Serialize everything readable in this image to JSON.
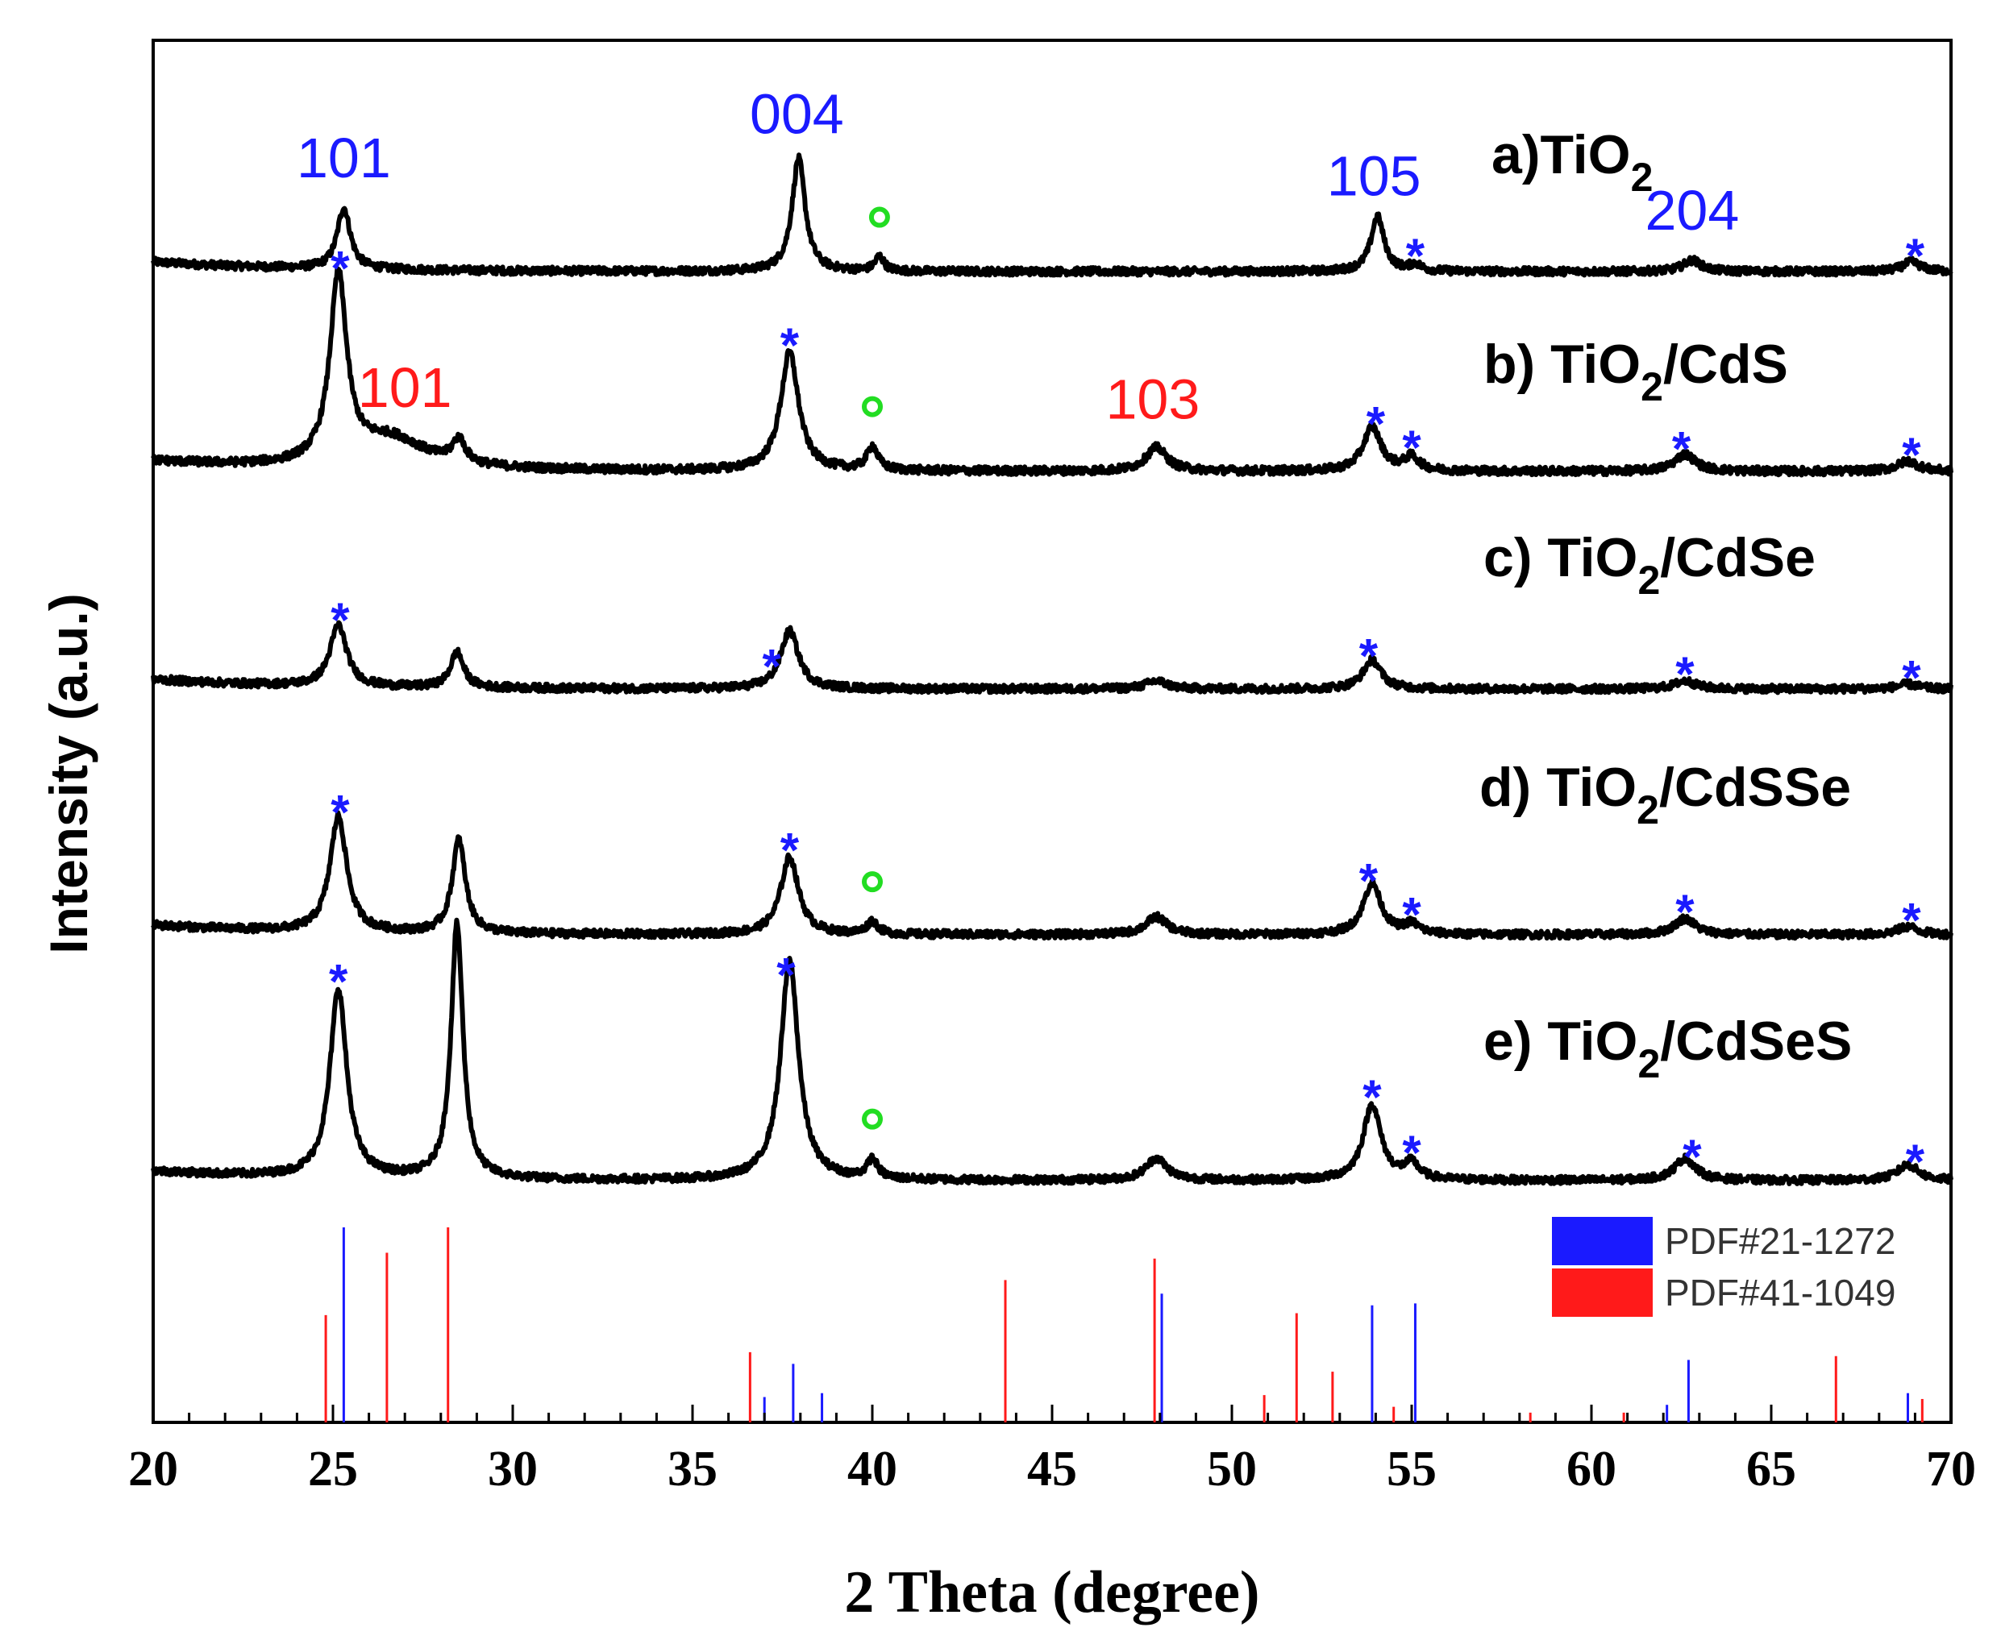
{
  "chart_data": {
    "type": "line",
    "title": "",
    "xlabel": "2 Theta (degree)",
    "ylabel": "Intensity (a.u.)",
    "xlim": [
      20,
      70
    ],
    "xticks": [
      "20",
      "25",
      "30",
      "35",
      "40",
      "45",
      "50",
      "55",
      "60",
      "65",
      "70"
    ],
    "series": [
      {
        "name": "TiO2",
        "label_prefix": "a)TiO",
        "label_sub": "2",
        "label_suffix": "",
        "baseline": 0,
        "noise": 3,
        "peaks": [
          [
            25.3,
            38,
            0.22
          ],
          [
            37.95,
            70,
            0.22
          ],
          [
            40.2,
            9,
            0.15
          ],
          [
            54.05,
            34,
            0.22
          ],
          [
            55.1,
            4,
            0.2
          ],
          [
            62.8,
            7,
            0.3
          ],
          [
            68.9,
            6,
            0.3
          ]
        ],
        "markers": [
          {
            "type": "miller",
            "text": "101",
            "x": 25.3,
            "color": "#1a1aff"
          },
          {
            "type": "miller",
            "text": "004",
            "x": 37.9,
            "color": "#1a1aff"
          },
          {
            "type": "circle",
            "x": 40.2
          },
          {
            "type": "miller",
            "text": "105",
            "x": 53.95,
            "color": "#1a1aff"
          },
          {
            "type": "star",
            "x": 55.1
          },
          {
            "type": "miller",
            "text": "204",
            "x": 62.8,
            "color": "#1a1aff"
          },
          {
            "type": "star",
            "x": 69.0
          }
        ]
      },
      {
        "name": "TiO2/CdS",
        "label_prefix": "b) TiO",
        "label_sub": "2",
        "label_suffix": "/CdS",
        "baseline": 0,
        "noise": 3,
        "peaks": [
          [
            25.15,
            110,
            0.28
          ],
          [
            26.6,
            18,
            1.2
          ],
          [
            28.5,
            14,
            0.22
          ],
          [
            37.7,
            70,
            0.3
          ],
          [
            40.0,
            14,
            0.18
          ],
          [
            47.9,
            14,
            0.35
          ],
          [
            53.9,
            26,
            0.3
          ],
          [
            55.0,
            8,
            0.25
          ],
          [
            62.6,
            10,
            0.35
          ],
          [
            68.8,
            6,
            0.35
          ]
        ],
        "markers": [
          {
            "type": "star",
            "x": 25.2
          },
          {
            "type": "miller",
            "text": "101",
            "x": 27.0,
            "color": "#ff1a1a"
          },
          {
            "type": "star",
            "x": 37.7
          },
          {
            "type": "circle",
            "x": 40.0
          },
          {
            "type": "miller",
            "text": "103",
            "x": 47.8,
            "color": "#ff1a1a"
          },
          {
            "type": "star",
            "x": 54.0
          },
          {
            "type": "star",
            "x": 55.0
          },
          {
            "type": "star",
            "x": 62.5
          },
          {
            "type": "star",
            "x": 68.9
          }
        ]
      },
      {
        "name": "TiO2/CdSe",
        "label_prefix": "c) TiO",
        "label_sub": "2",
        "label_suffix": "/CdSe",
        "baseline": 0,
        "noise": 3,
        "peaks": [
          [
            25.15,
            38,
            0.28
          ],
          [
            28.45,
            22,
            0.22
          ],
          [
            37.7,
            36,
            0.3
          ],
          [
            47.9,
            5,
            0.35
          ],
          [
            53.9,
            18,
            0.3
          ],
          [
            62.6,
            5,
            0.35
          ],
          [
            68.8,
            3,
            0.35
          ]
        ],
        "markers": [
          {
            "type": "star",
            "x": 25.2
          },
          {
            "type": "star",
            "x": 37.2
          },
          {
            "type": "star",
            "x": 53.8
          },
          {
            "type": "star",
            "x": 62.6
          },
          {
            "type": "star",
            "x": 68.9
          }
        ]
      },
      {
        "name": "TiO2/CdSSe",
        "label_prefix": "d) TiO",
        "label_sub": "2",
        "label_suffix": "/CdSSe",
        "baseline": 0,
        "noise": 3,
        "peaks": [
          [
            25.15,
            72,
            0.28
          ],
          [
            28.5,
            58,
            0.22
          ],
          [
            37.7,
            48,
            0.3
          ],
          [
            40.0,
            8,
            0.18
          ],
          [
            47.9,
            11,
            0.35
          ],
          [
            53.9,
            32,
            0.3
          ],
          [
            55.0,
            6,
            0.25
          ],
          [
            62.6,
            10,
            0.35
          ],
          [
            68.8,
            5,
            0.35
          ]
        ],
        "markers": [
          {
            "type": "star",
            "x": 25.2
          },
          {
            "type": "star",
            "x": 37.7
          },
          {
            "type": "circle",
            "x": 40.0
          },
          {
            "type": "star",
            "x": 53.8
          },
          {
            "type": "star",
            "x": 55.0
          },
          {
            "type": "star",
            "x": 62.6
          },
          {
            "type": "star",
            "x": 68.9
          }
        ]
      },
      {
        "name": "TiO2/CdSeS",
        "label_prefix": "e) TiO",
        "label_sub": "2",
        "label_suffix": "/CdSeS",
        "baseline": 0,
        "noise": 3,
        "peaks": [
          [
            25.15,
            120,
            0.28
          ],
          [
            28.45,
            162,
            0.2
          ],
          [
            37.7,
            140,
            0.3
          ],
          [
            40.0,
            12,
            0.18
          ],
          [
            47.9,
            14,
            0.35
          ],
          [
            53.9,
            48,
            0.3
          ],
          [
            55.0,
            10,
            0.25
          ],
          [
            62.6,
            14,
            0.35
          ],
          [
            68.8,
            10,
            0.35
          ]
        ],
        "markers": [
          {
            "type": "star",
            "x": 25.15
          },
          {
            "type": "star",
            "x": 37.6
          },
          {
            "type": "circle",
            "x": 40.0
          },
          {
            "type": "star",
            "x": 53.9
          },
          {
            "type": "star",
            "x": 55.0
          },
          {
            "type": "star",
            "x": 62.8
          },
          {
            "type": "star",
            "x": 69.0
          }
        ]
      }
    ],
    "reference_patterns": [
      {
        "name": "PDF#21-1272",
        "color": "#1a1aff",
        "lines": [
          [
            25.3,
            100
          ],
          [
            37.0,
            13
          ],
          [
            37.8,
            30
          ],
          [
            38.6,
            15
          ],
          [
            48.05,
            66
          ],
          [
            53.9,
            60
          ],
          [
            55.1,
            61
          ],
          [
            62.1,
            9
          ],
          [
            62.7,
            32
          ],
          [
            68.8,
            15
          ]
        ]
      },
      {
        "name": "PDF#41-1049",
        "color": "#ff1a1a",
        "lines": [
          [
            24.8,
            55
          ],
          [
            26.5,
            87
          ],
          [
            28.2,
            100
          ],
          [
            36.6,
            36
          ],
          [
            43.7,
            73
          ],
          [
            47.85,
            84
          ],
          [
            50.9,
            14
          ],
          [
            51.8,
            56
          ],
          [
            52.8,
            26
          ],
          [
            54.5,
            8
          ],
          [
            58.3,
            5
          ],
          [
            60.9,
            5
          ],
          [
            66.8,
            34
          ],
          [
            69.2,
            12
          ]
        ]
      }
    ]
  }
}
